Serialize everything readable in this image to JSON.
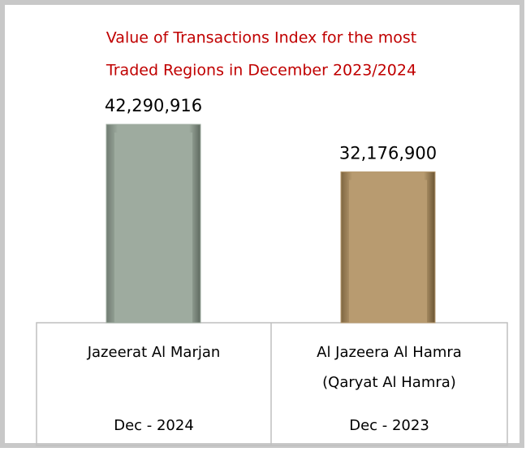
{
  "chart_data": {
    "type": "bar",
    "title": [
      "Value of Transactions Index for the most",
      "Traded Regions in December 2023/2024"
    ],
    "categories": [
      [
        "Jazeerat Al Marjan"
      ],
      [
        "Al Jazeera Al Hamra",
        "(Qaryat Al Hamra)"
      ]
    ],
    "periods": [
      "Dec - 2024",
      "Dec - 2023"
    ],
    "values": [
      42290916,
      32176900
    ],
    "value_labels": [
      "42,290,916",
      "32,176,900"
    ],
    "colors": [
      "#9eab9f",
      "#b89b70"
    ]
  }
}
